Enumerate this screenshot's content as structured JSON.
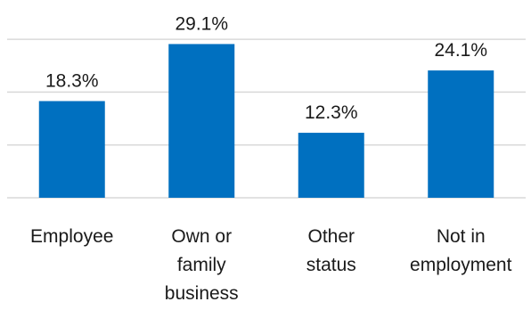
{
  "chart_data": {
    "type": "bar",
    "categories": [
      "Employee",
      "Own or family business",
      "Other status",
      "Not in employment"
    ],
    "category_lines": [
      [
        "Employee"
      ],
      [
        "Own or",
        "family",
        "business"
      ],
      [
        "Other",
        "status"
      ],
      [
        "Not in",
        "employment"
      ]
    ],
    "values": [
      18.3,
      29.1,
      12.3,
      24.1
    ],
    "value_labels": [
      "18.3%",
      "29.1%",
      "12.3%",
      "24.1%"
    ],
    "ylim": [
      0,
      35
    ],
    "gridlines": [
      0,
      10,
      20,
      30
    ],
    "grid": true,
    "legend": "none",
    "colors": {
      "bar": "#0070C0",
      "grid": "#D9D9D9",
      "text": "#1a1a1a"
    }
  }
}
